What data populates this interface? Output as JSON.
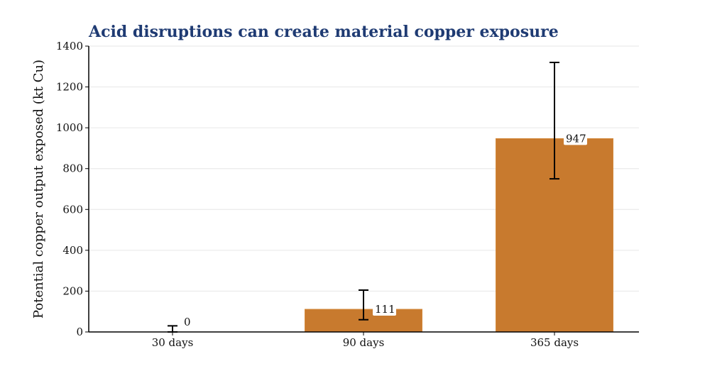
{
  "chart_data": {
    "type": "bar",
    "title": "Acid disruptions can create material copper exposure",
    "xlabel": "",
    "ylabel": "Potential copper output exposed (kt Cu)",
    "categories": [
      "30 days",
      "90 days",
      "365 days"
    ],
    "values": [
      0,
      111,
      947
    ],
    "error_low": [
      0,
      60,
      750
    ],
    "error_high": [
      30,
      205,
      1320
    ],
    "data_labels": [
      "0",
      "111",
      "947"
    ],
    "ylim": [
      0,
      1400
    ],
    "yticks": [
      0,
      200,
      400,
      600,
      800,
      1000,
      1200,
      1400
    ],
    "ytick_labels": [
      "0",
      "200",
      "400",
      "600",
      "800",
      "1000",
      "1200",
      "1400"
    ],
    "grid": true,
    "colors": {
      "bar": "#c87a2e",
      "bar_edge": "#d4893a",
      "errorbar": "#000000",
      "title": "#1f3b73",
      "grid": "#e6e6e6"
    }
  }
}
